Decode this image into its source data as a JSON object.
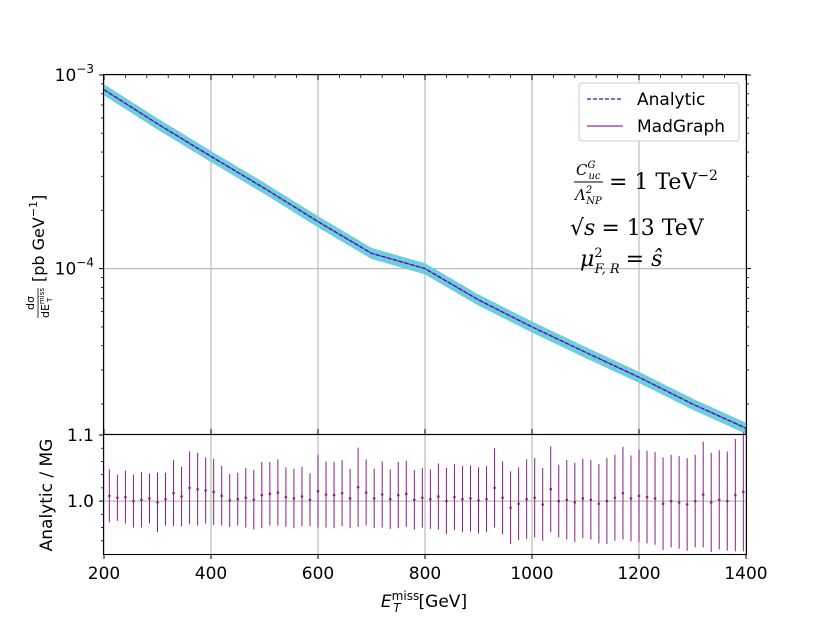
{
  "chart_data": [
    {
      "type": "line",
      "panel": "main",
      "xlim": [
        200,
        1400
      ],
      "ylim": [
        1.4e-05,
        0.001
      ],
      "yscale": "log",
      "grid": true,
      "xticks": [
        200,
        400,
        600,
        800,
        1000,
        1200,
        1400
      ],
      "yticks": [
        {
          "value": 0.001,
          "base": "10",
          "exp": "−3"
        },
        {
          "value": 0.0001,
          "base": "10",
          "exp": "−4"
        }
      ],
      "ylabel": {
        "main": "[pb GeV",
        "exp": "−1",
        "close": "]",
        "num": "dσ",
        "den_prefix": "dE",
        "den_sub": "T",
        "den_sup": "miss"
      },
      "legend": {
        "position": "top-right",
        "entries": [
          {
            "label": "Analytic",
            "color": "#1a1acc",
            "style": "dashed"
          },
          {
            "label": "MadGraph",
            "color": "#a64ad0",
            "style": "solid"
          }
        ]
      },
      "annotations": {
        "coupling": {
          "C": "C",
          "sup": "G",
          "sub": "uc",
          "Lambda": "Λ",
          "Lsup": "2",
          "Lsub": "NP",
          "rhs": "= 1 TeV",
          "rhs_exp": "−2"
        },
        "energy": {
          "sqrt": "√",
          "s": "s",
          "rhs": "= 13 TeV"
        },
        "scale": {
          "mu": "μ",
          "sup": "2",
          "sub": "F, R",
          "rhs": "= ŝ"
        }
      },
      "series": [
        {
          "name": "Analytic",
          "color": "#1a1acc",
          "style": "dashed",
          "x": [
            200,
            300,
            400,
            500,
            600,
            700,
            800,
            900,
            1000,
            1100,
            1200,
            1300,
            1400
          ],
          "y": [
            0.00084,
            0.00056,
            0.00038,
            0.00026,
            0.000175,
            0.00012,
            0.0001,
            6.9e-05,
            5e-05,
            3.7e-05,
            2.75e-05,
            2e-05,
            1.5e-05
          ]
        },
        {
          "name": "MadGraph",
          "color": "#a64ad0",
          "style": "solid",
          "x": [
            200,
            300,
            400,
            500,
            600,
            700,
            800,
            900,
            1000,
            1100,
            1200,
            1300,
            1400
          ],
          "y": [
            0.00084,
            0.00056,
            0.00038,
            0.00026,
            0.000175,
            0.00012,
            0.0001,
            6.9e-05,
            5e-05,
            3.7e-05,
            2.75e-05,
            2e-05,
            1.5e-05
          ]
        }
      ],
      "band": {
        "color": "#6fcfd6",
        "relative_width": 0.06
      }
    },
    {
      "type": "scatter",
      "panel": "ratio",
      "xlim": [
        200,
        1400
      ],
      "ylim": [
        0.92,
        1.1
      ],
      "ylabel": "Analytic / MG",
      "xlabel": {
        "prefix": "E",
        "sub": "T",
        "sup": "miss",
        "suffix": "[GeV]"
      },
      "xticks": [
        200,
        400,
        600,
        800,
        1000,
        1200,
        1400
      ],
      "yticks": [
        {
          "value": 1.1,
          "label": "1.1"
        },
        {
          "value": 1.0,
          "label": "1.0"
        }
      ],
      "grid": true,
      "color": "#8a1e8a",
      "x": [
        210,
        225,
        240,
        255,
        270,
        285,
        300,
        315,
        330,
        345,
        360,
        375,
        390,
        405,
        420,
        435,
        450,
        465,
        480,
        495,
        510,
        525,
        540,
        555,
        570,
        585,
        600,
        615,
        630,
        645,
        660,
        675,
        690,
        705,
        720,
        735,
        750,
        765,
        780,
        795,
        810,
        825,
        840,
        855,
        870,
        885,
        900,
        915,
        930,
        945,
        960,
        975,
        990,
        1005,
        1020,
        1035,
        1050,
        1065,
        1080,
        1095,
        1110,
        1125,
        1140,
        1155,
        1170,
        1185,
        1200,
        1215,
        1230,
        1245,
        1260,
        1275,
        1290,
        1305,
        1320,
        1335,
        1350,
        1365,
        1380,
        1395
      ],
      "y": [
        1.008,
        1.005,
        1.006,
        1.0,
        1.002,
        1.004,
        0.998,
        1.003,
        1.012,
        1.007,
        1.02,
        1.018,
        1.016,
        1.014,
        1.008,
        1.001,
        1.003,
        1.005,
        1.002,
        1.009,
        1.011,
        1.013,
        1.006,
        1.004,
        1.007,
        1.002,
        1.015,
        1.01,
        1.009,
        1.012,
        1.004,
        1.021,
        1.013,
        1.004,
        1.01,
        1.003,
        1.009,
        1.011,
        1.002,
        1.005,
        1.003,
        1.007,
        1.0,
        1.006,
        1.003,
        1.004,
        1.001,
        1.003,
        1.02,
        1.005,
        0.99,
        0.996,
        1.003,
        1.005,
        0.995,
        1.018,
        1.0,
        1.002,
        0.998,
        1.004,
        1.002,
        0.996,
        1.0,
        1.005,
        1.012,
        1.004,
        1.008,
        1.006,
        1.004,
        0.996,
        1.0,
        0.998,
        0.995,
        1.0,
        1.01,
        0.998,
        1.002,
        1.0,
        1.009,
        1.014
      ],
      "yerr": [
        0.04,
        0.035,
        0.04,
        0.04,
        0.042,
        0.038,
        0.045,
        0.04,
        0.05,
        0.045,
        0.055,
        0.055,
        0.05,
        0.05,
        0.045,
        0.04,
        0.04,
        0.045,
        0.045,
        0.05,
        0.048,
        0.05,
        0.045,
        0.045,
        0.045,
        0.04,
        0.055,
        0.05,
        0.05,
        0.05,
        0.045,
        0.06,
        0.05,
        0.045,
        0.05,
        0.045,
        0.05,
        0.05,
        0.045,
        0.045,
        0.045,
        0.05,
        0.05,
        0.05,
        0.05,
        0.05,
        0.05,
        0.05,
        0.06,
        0.055,
        0.055,
        0.055,
        0.06,
        0.06,
        0.055,
        0.065,
        0.055,
        0.06,
        0.06,
        0.06,
        0.06,
        0.06,
        0.065,
        0.065,
        0.07,
        0.065,
        0.07,
        0.07,
        0.07,
        0.07,
        0.07,
        0.07,
        0.07,
        0.07,
        0.08,
        0.075,
        0.075,
        0.075,
        0.085,
        0.09
      ]
    }
  ]
}
